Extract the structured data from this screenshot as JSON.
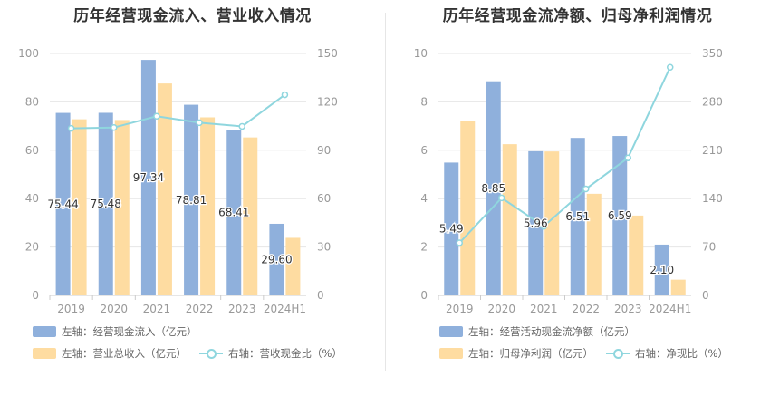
{
  "colors": {
    "bar1": "#8fb0dc",
    "bar2": "#fedca1",
    "line": "#8fd6de",
    "axis_text": "#999999",
    "grid": "#e6e6e6"
  },
  "chart_data": [
    {
      "type": "bar",
      "title": "历年经营现金流入、营业收入情况",
      "categories": [
        "2019",
        "2020",
        "2021",
        "2022",
        "2023",
        "2024H1"
      ],
      "y_left": {
        "ticks": [
          "0",
          "20",
          "40",
          "60",
          "80",
          "100"
        ],
        "range": [
          0,
          100
        ]
      },
      "y_right": {
        "ticks": [
          "0",
          "30",
          "60",
          "90",
          "120",
          "150"
        ],
        "range": [
          0,
          150
        ]
      },
      "series": [
        {
          "name": "左轴：经营现金流入（亿元）",
          "kind": "bar",
          "axis": "left",
          "values": [
            75.44,
            75.48,
            97.34,
            78.81,
            68.41,
            29.6
          ],
          "labels": [
            "75.44",
            "75.48",
            "97.34",
            "78.81",
            "68.41",
            "29.60"
          ]
        },
        {
          "name": "左轴：营业总收入（亿元）",
          "kind": "bar",
          "axis": "left",
          "values": [
            72.8,
            72.5,
            87.6,
            73.6,
            65.3,
            23.8
          ]
        },
        {
          "name": "右轴：营收现金比（%）",
          "kind": "line",
          "axis": "right",
          "values": [
            103.6,
            104.1,
            111.1,
            107.1,
            104.8,
            124.4
          ]
        }
      ],
      "legend": {
        "placement": "bottom-left"
      },
      "grid": true
    },
    {
      "type": "bar",
      "title": "历年经营现金流净额、归母净利润情况",
      "categories": [
        "2019",
        "2020",
        "2021",
        "2022",
        "2023",
        "2024H1"
      ],
      "y_left": {
        "ticks": [
          "0",
          "2",
          "4",
          "6",
          "8",
          "10"
        ],
        "range": [
          0,
          10
        ]
      },
      "y_right": {
        "ticks": [
          "0",
          "70",
          "140",
          "210",
          "280",
          "350"
        ],
        "range": [
          0,
          350
        ]
      },
      "series": [
        {
          "name": "左轴：经营活动现金流净额（亿元）",
          "kind": "bar",
          "axis": "left",
          "values": [
            5.49,
            8.85,
            5.96,
            6.51,
            6.59,
            2.1
          ],
          "labels": [
            "5.49",
            "8.85",
            "5.96",
            "6.51",
            "6.59",
            "2.10"
          ]
        },
        {
          "name": "左轴：归母净利润（亿元）",
          "kind": "bar",
          "axis": "left",
          "values": [
            7.2,
            6.25,
            5.95,
            4.2,
            3.3,
            0.65
          ]
        },
        {
          "name": "右轴：净现比（%）",
          "kind": "line",
          "axis": "right",
          "values": [
            76,
            141,
            100,
            154,
            199,
            330
          ]
        }
      ],
      "legend": {
        "placement": "bottom-left"
      },
      "grid": true
    }
  ]
}
